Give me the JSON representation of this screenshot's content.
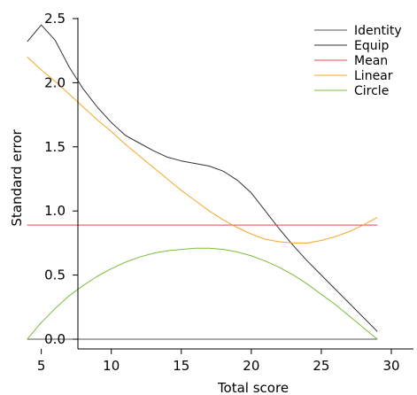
{
  "chart_data": {
    "type": "line",
    "xlabel": "Total score",
    "ylabel": "Standard error",
    "xlim": [
      3,
      30
    ],
    "ylim": [
      0.0,
      2.5
    ],
    "x_ticks": [
      5,
      10,
      15,
      20,
      25,
      30
    ],
    "x_tick_labels": [
      "5",
      "10",
      "15",
      "20",
      "25",
      "30"
    ],
    "y_ticks": [
      0.0,
      0.5,
      1.0,
      1.5,
      2.0,
      2.5
    ],
    "y_tick_labels": [
      "0.0",
      "0.5",
      "1.0",
      "1.5",
      "2.0",
      "2.5"
    ],
    "grid": false,
    "legend_position": "top-right",
    "series": [
      {
        "name": "Identity",
        "color": "#555555",
        "x": [
          4,
          29
        ],
        "y": [
          0.0,
          0.0
        ]
      },
      {
        "name": "Equip",
        "color": "#333333",
        "x": [
          4,
          5,
          6,
          7,
          8,
          9,
          10,
          11,
          12,
          13,
          14,
          15,
          16,
          17,
          18,
          19,
          20,
          21,
          22,
          23,
          24,
          25,
          26,
          27,
          28,
          29
        ],
        "y": [
          2.32,
          2.45,
          2.33,
          2.12,
          1.95,
          1.81,
          1.69,
          1.59,
          1.53,
          1.47,
          1.42,
          1.39,
          1.37,
          1.35,
          1.31,
          1.24,
          1.14,
          1.0,
          0.86,
          0.73,
          0.61,
          0.5,
          0.39,
          0.28,
          0.17,
          0.06
        ]
      },
      {
        "name": "Mean",
        "color": "#e8474c",
        "x": [
          4,
          29
        ],
        "y": [
          0.89,
          0.89
        ]
      },
      {
        "name": "Linear",
        "color": "#f6a623",
        "x": [
          4,
          5,
          6,
          7,
          8,
          9,
          10,
          11,
          12,
          13,
          14,
          15,
          16,
          17,
          18,
          19,
          20,
          21,
          22,
          23,
          24,
          25,
          26,
          27,
          28,
          29
        ],
        "y": [
          2.2,
          2.1,
          2.01,
          1.91,
          1.81,
          1.71,
          1.62,
          1.52,
          1.43,
          1.34,
          1.25,
          1.16,
          1.08,
          1.0,
          0.93,
          0.87,
          0.82,
          0.78,
          0.76,
          0.75,
          0.75,
          0.77,
          0.8,
          0.84,
          0.89,
          0.95
        ]
      },
      {
        "name": "Circle",
        "color": "#7cbd3c",
        "x": [
          4,
          5,
          6,
          7,
          8,
          9,
          10,
          11,
          12,
          13,
          14,
          15,
          16,
          17,
          18,
          19,
          20,
          21,
          22,
          23,
          24,
          25,
          26,
          27,
          28,
          29
        ],
        "y": [
          0.0,
          0.13,
          0.24,
          0.34,
          0.42,
          0.49,
          0.55,
          0.6,
          0.64,
          0.67,
          0.69,
          0.7,
          0.71,
          0.71,
          0.7,
          0.68,
          0.65,
          0.61,
          0.56,
          0.5,
          0.43,
          0.35,
          0.27,
          0.18,
          0.09,
          0.0
        ]
      }
    ]
  }
}
